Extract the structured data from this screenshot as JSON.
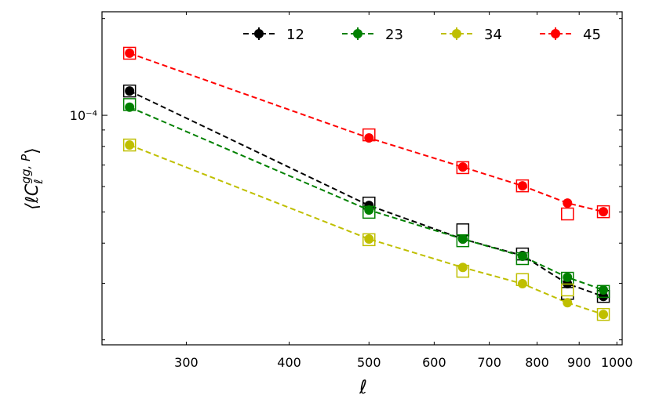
{
  "chart_data": {
    "type": "line",
    "xlabel": "ℓ",
    "ylabel": {
      "open": "⟨ℓC",
      "sub": "ℓ",
      "sup": "gg, P",
      "close": "⟩"
    },
    "x": [
      256,
      500,
      650,
      768,
      871,
      963
    ],
    "series": [
      {
        "name": "12",
        "color": "#000000",
        "values": [
          0.000119,
          5.24e-05,
          4.12e-05,
          3.66e-05,
          2.99e-05,
          2.73e-05
        ],
        "squares": [
          0.000119,
          5.33e-05,
          4.4e-05,
          3.7e-05,
          2.79e-05,
          2.73e-05
        ]
      },
      {
        "name": "23",
        "color": "#008000",
        "values": [
          0.000106,
          5.07e-05,
          4.12e-05,
          3.64e-05,
          3.13e-05,
          2.86e-05
        ],
        "squares": [
          0.000108,
          4.99e-05,
          4.07e-05,
          3.58e-05,
          3.11e-05,
          2.83e-05
        ]
      },
      {
        "name": "34",
        "color": "#bfbf00",
        "values": [
          8.08e-05,
          4.12e-05,
          3.36e-05,
          2.99e-05,
          2.61e-05,
          2.4e-05
        ],
        "squares": [
          8.08e-05,
          4.1e-05,
          3.27e-05,
          3.08e-05,
          2.86e-05,
          2.4e-05
        ]
      },
      {
        "name": "45",
        "color": "#ff0000",
        "values": [
          0.000156,
          8.5e-05,
          6.9e-05,
          6.03e-05,
          5.33e-05,
          5.01e-05
        ],
        "squares": [
          0.000156,
          8.69e-05,
          6.87e-05,
          6.03e-05,
          4.93e-05,
          5.01e-05
        ]
      }
    ],
    "xlog": true,
    "ylog": true,
    "xlim": [
      237,
      1015
    ],
    "ylim": [
      1.93e-05,
      0.00021
    ],
    "xticks": [
      300,
      400,
      500,
      600,
      700,
      800,
      900,
      1000
    ],
    "yticks": [
      {
        "value": 0.0001,
        "label": "10⁻⁴"
      }
    ],
    "yminorticks": [
      2e-05,
      3e-05,
      4e-05,
      5e-05,
      6e-05,
      7e-05,
      8e-05,
      9e-05,
      0.0002
    ],
    "legend": "top"
  }
}
